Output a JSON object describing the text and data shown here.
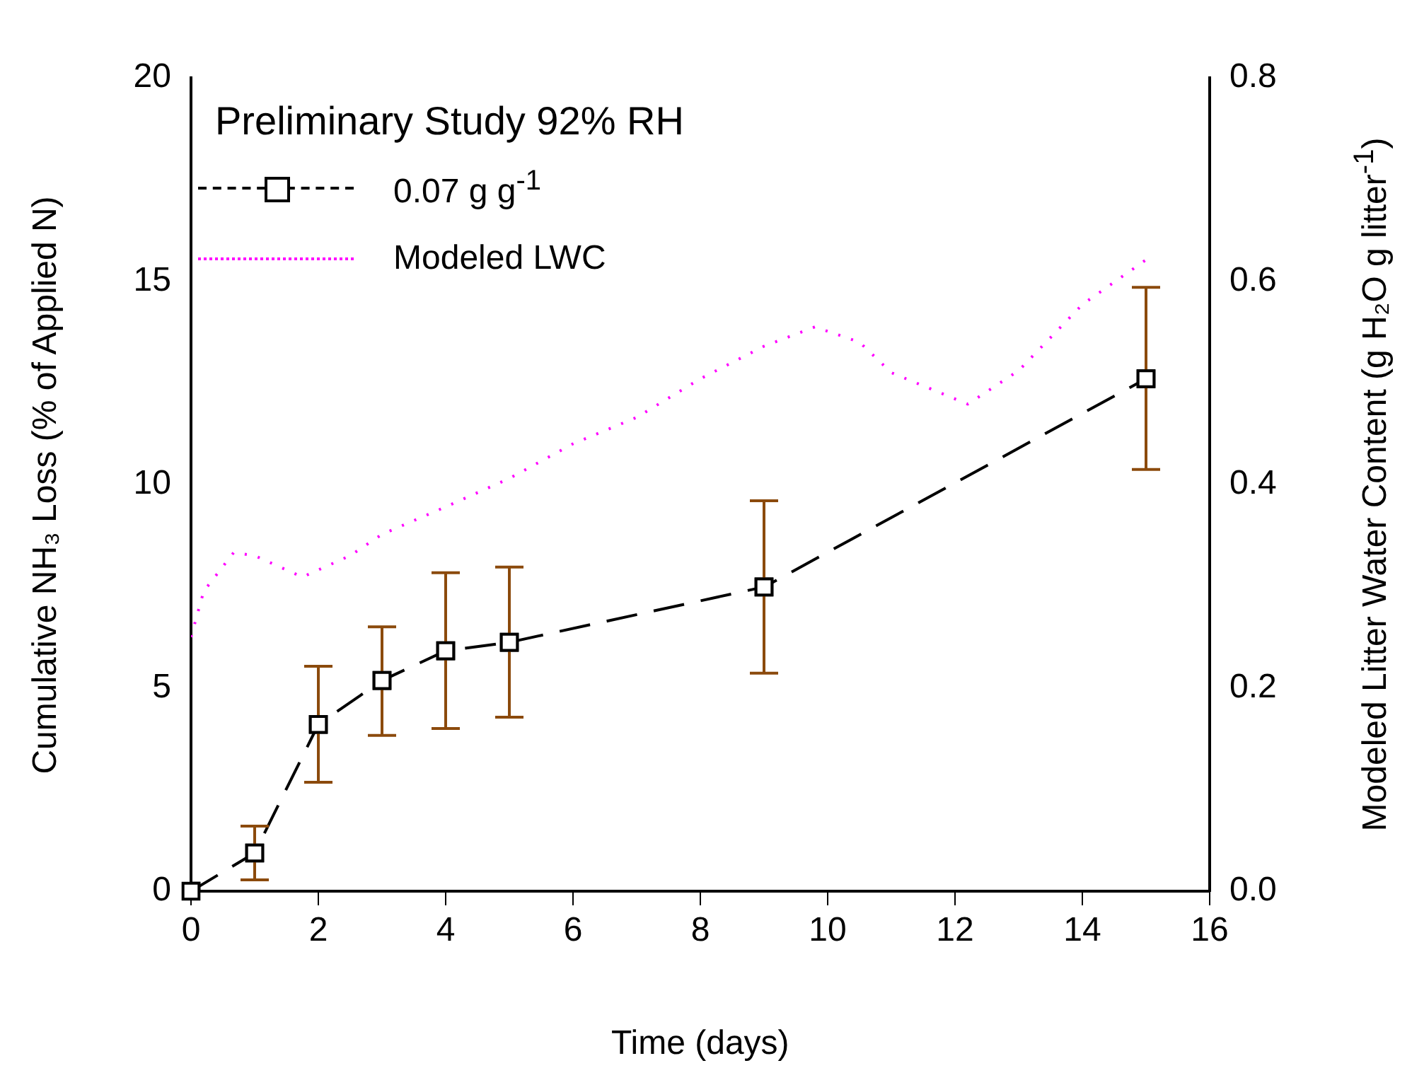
{
  "chart_data": {
    "type": "line",
    "xlabel": "Time (days)",
    "ylabel": "Cumulative NH₃ Loss (% of Applied N)",
    "y2label": "Modeled Litter Water Content (g H₂O g litter$^{-1}$)",
    "legend_title": "Preliminary Study 92% RH",
    "legend": "top left",
    "grid": false,
    "xlim": [
      0,
      16
    ],
    "xticks": [
      0,
      2,
      4,
      6,
      8,
      10,
      12,
      14,
      16
    ],
    "ylim": [
      0,
      20
    ],
    "yticks": [
      0,
      5,
      10,
      15,
      20
    ],
    "y2lim": [
      0,
      0.8
    ],
    "y2ticks": [
      {
        "value": 0,
        "label": "0.0"
      },
      {
        "value": 0.2,
        "label": "0.2"
      },
      {
        "value": 0.4,
        "label": "0.4"
      },
      {
        "value": 0.6,
        "label": "0.6"
      },
      {
        "value": 0.8,
        "label": "0.8"
      }
    ],
    "series": [
      {
        "name": "0.07 g g$^{-1}$",
        "color": "#000000",
        "marker": "square",
        "line_style": "dashed",
        "x": [
          0,
          1,
          2,
          3,
          4,
          5,
          9,
          15
        ],
        "values": [
          0,
          0.94,
          4.1,
          5.18,
          5.91,
          6.12,
          7.48,
          12.6
        ],
        "errors": [
          null,
          [
            0.28,
            1.6
          ],
          [
            2.68,
            5.53
          ],
          [
            3.83,
            6.5
          ],
          [
            4.0,
            7.83
          ],
          [
            4.28,
            7.97
          ],
          [
            5.36,
            9.6
          ],
          [
            10.37,
            14.85
          ]
        ]
      },
      {
        "name": "Modeled LWC",
        "color": "#ff00ff",
        "marker": "none",
        "line_style": "dotted",
        "axis": "y2",
        "x": [
          0,
          0.2,
          0.67,
          1.0,
          1.75,
          2.5,
          3,
          4,
          5,
          6,
          7,
          8,
          9,
          9.8,
          10.5,
          11,
          12.2,
          13,
          14,
          15
        ],
        "values": [
          0.25,
          0.295,
          0.333,
          0.33,
          0.309,
          0.33,
          0.351,
          0.378,
          0.406,
          0.44,
          0.466,
          0.504,
          0.536,
          0.555,
          0.54,
          0.51,
          0.479,
          0.512,
          0.577,
          0.621
        ]
      }
    ]
  }
}
